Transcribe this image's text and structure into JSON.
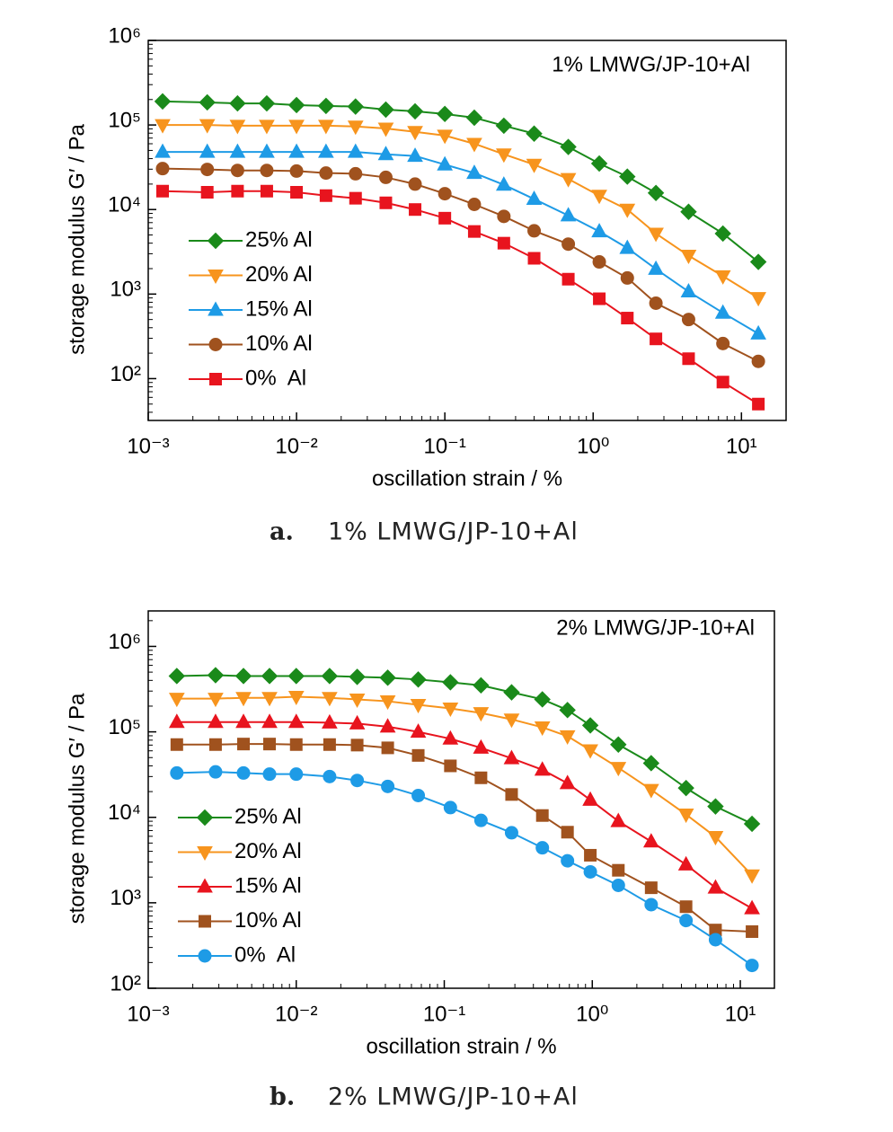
{
  "chart_data": [
    {
      "type": "line",
      "annotation": "1% LMWG/JP-10+Al",
      "caption_label": "a.",
      "caption": "1% LMWG/JP-10+Al",
      "x_label": "oscillation strain / %",
      "y_label": "storage modulus G′ / Pa",
      "xscale": "log",
      "yscale": "log",
      "xlim": [
        0.001,
        20
      ],
      "ylim": [
        32,
        1000000
      ],
      "xticks": [
        {
          "value": 0.001,
          "label": "10⁻³"
        },
        {
          "value": 0.01,
          "label": "10⁻²"
        },
        {
          "value": 0.1,
          "label": "10⁻¹"
        },
        {
          "value": 1,
          "label": "10⁰"
        },
        {
          "value": 10,
          "label": "10¹"
        }
      ],
      "yticks": [
        {
          "value": 100,
          "label": "10²"
        },
        {
          "value": 1000,
          "label": "10³"
        },
        {
          "value": 10000,
          "label": "10⁴"
        },
        {
          "value": 100000,
          "label": "10⁵"
        },
        {
          "value": 1000000,
          "label": "10⁶"
        }
      ],
      "legend": "left",
      "x": [
        0.00125,
        0.0025,
        0.004,
        0.0063,
        0.01,
        0.0158,
        0.025,
        0.04,
        0.063,
        0.1,
        0.158,
        0.25,
        0.4,
        0.68,
        1.1,
        1.7,
        2.65,
        4.4,
        7.5,
        13
      ],
      "series": [
        {
          "name": "25% Al",
          "color": "#1a8a1a",
          "marker": "diamond",
          "values": [
            190000,
            185000,
            180000,
            180000,
            172000,
            168000,
            165000,
            152000,
            145000,
            135000,
            122000,
            98000,
            79000,
            55000,
            35000,
            24500,
            15700,
            9400,
            5200,
            2400
          ]
        },
        {
          "name": "20% Al",
          "color": "#f7941d",
          "marker": "triangle-down",
          "values": [
            100000,
            100000,
            98000,
            98000,
            98000,
            98000,
            96000,
            91000,
            83000,
            75000,
            60000,
            45000,
            34000,
            23000,
            14600,
            10000,
            5200,
            2850,
            1630,
            900
          ]
        },
        {
          "name": "15% Al",
          "color": "#1e9be6",
          "marker": "triangle-up",
          "values": [
            48000,
            48000,
            48000,
            48000,
            48000,
            48000,
            48000,
            45000,
            43000,
            34000,
            27000,
            19600,
            13300,
            8500,
            5500,
            3500,
            1980,
            1070,
            600,
            340
          ]
        },
        {
          "name": "10% Al",
          "color": "#a0521e",
          "marker": "circle",
          "values": [
            30500,
            29800,
            29000,
            29000,
            28500,
            27000,
            26500,
            24000,
            20000,
            15400,
            11500,
            8300,
            5600,
            3900,
            2400,
            1550,
            780,
            500,
            260,
            160
          ]
        },
        {
          "name": "0%  Al",
          "color": "#e8141e",
          "marker": "square",
          "values": [
            16500,
            16000,
            16500,
            16500,
            16000,
            14600,
            13600,
            12000,
            10000,
            7900,
            5500,
            4000,
            2650,
            1500,
            880,
            520,
            295,
            172,
            91,
            50
          ]
        }
      ]
    },
    {
      "type": "line",
      "annotation": "2% LMWG/JP-10+Al",
      "caption_label": "b.",
      "caption": "2% LMWG/JP-10+Al",
      "x_label": "oscillation strain / %",
      "y_label": "storage modulus G′ / Pa",
      "xscale": "log",
      "yscale": "log",
      "xlim": [
        0.001,
        17
      ],
      "ylim": [
        100,
        2600000
      ],
      "xticks": [
        {
          "value": 0.001,
          "label": "10⁻³"
        },
        {
          "value": 0.01,
          "label": "10⁻²"
        },
        {
          "value": 0.1,
          "label": "10⁻¹"
        },
        {
          "value": 1,
          "label": "10⁰"
        },
        {
          "value": 10,
          "label": "10¹"
        }
      ],
      "yticks": [
        {
          "value": 100,
          "label": "10²"
        },
        {
          "value": 1000,
          "label": "10³"
        },
        {
          "value": 10000,
          "label": "10⁴"
        },
        {
          "value": 100000,
          "label": "10⁵"
        },
        {
          "value": 1000000,
          "label": "10⁶"
        }
      ],
      "legend": "left",
      "x": [
        0.00156,
        0.00285,
        0.0044,
        0.0066,
        0.01,
        0.0168,
        0.0258,
        0.0415,
        0.0667,
        0.11,
        0.177,
        0.285,
        0.46,
        0.68,
        0.97,
        1.5,
        2.5,
        4.3,
        6.8,
        12
      ],
      "series": [
        {
          "name": "25% Al",
          "color": "#1a8a1a",
          "marker": "diamond",
          "values": [
            450000,
            460000,
            450000,
            450000,
            450000,
            450000,
            440000,
            430000,
            410000,
            380000,
            350000,
            290000,
            240000,
            180000,
            119000,
            71000,
            43000,
            22000,
            13400,
            8400
          ]
        },
        {
          "name": "20% Al",
          "color": "#f7941d",
          "marker": "triangle-down",
          "values": [
            245000,
            245000,
            250000,
            250000,
            258000,
            250000,
            240000,
            228000,
            207000,
            188000,
            166000,
            140000,
            113000,
            89000,
            61000,
            38000,
            21000,
            10800,
            5900,
            2100
          ]
        },
        {
          "name": "15% Al",
          "color": "#e8141e",
          "marker": "triangle-up",
          "values": [
            130000,
            130000,
            130000,
            130000,
            130000,
            128000,
            125000,
            115000,
            100000,
            83000,
            65000,
            49000,
            36000,
            25000,
            16000,
            9000,
            5200,
            2800,
            1500,
            860
          ]
        },
        {
          "name": "10% Al",
          "color": "#a0521e",
          "marker": "square",
          "values": [
            71000,
            71000,
            72000,
            72000,
            71000,
            71000,
            70000,
            65000,
            53000,
            40000,
            29000,
            18500,
            10500,
            6700,
            3600,
            2400,
            1500,
            900,
            480,
            460
          ]
        },
        {
          "name": "0%  Al",
          "color": "#1e9be6",
          "marker": "circle",
          "values": [
            33000,
            34000,
            33000,
            32000,
            32000,
            30000,
            27000,
            23000,
            18000,
            13000,
            9200,
            6600,
            4400,
            3100,
            2300,
            1600,
            950,
            620,
            370,
            185
          ]
        }
      ]
    }
  ]
}
